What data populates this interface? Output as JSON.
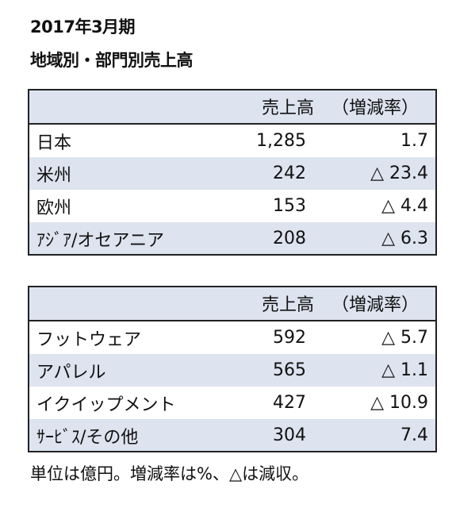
{
  "fiscal_period": "2017年3月期",
  "section_title": "地域別・部門別売上高",
  "header": {
    "sales": "売上高",
    "change": "（増減率）"
  },
  "regions": [
    {
      "name": "日本",
      "sales": "1,285",
      "change": "1.7"
    },
    {
      "name": "米州",
      "sales": "242",
      "change": "△ 23.4"
    },
    {
      "name": "欧州",
      "sales": "153",
      "change": "△ 4.4"
    },
    {
      "name": "ｱｼﾞｱ/オセアニア",
      "sales": "208",
      "change": "△ 6.3"
    }
  ],
  "segments": [
    {
      "name": "フットウェア",
      "sales": "592",
      "change": "△ 5.7"
    },
    {
      "name": "アパレル",
      "sales": "565",
      "change": "△ 1.1"
    },
    {
      "name": "イクイップメント",
      "sales": "427",
      "change": "△ 10.9"
    },
    {
      "name": "ｻｰﾋﾞｽ/その他",
      "sales": "304",
      "change": "7.4"
    }
  ],
  "footnote": "単位は億円。増減率は%、△は減収。",
  "colors": {
    "header_bg": "#dde3ef",
    "stripe_bg": "#dde3ef",
    "border": "#222222"
  }
}
